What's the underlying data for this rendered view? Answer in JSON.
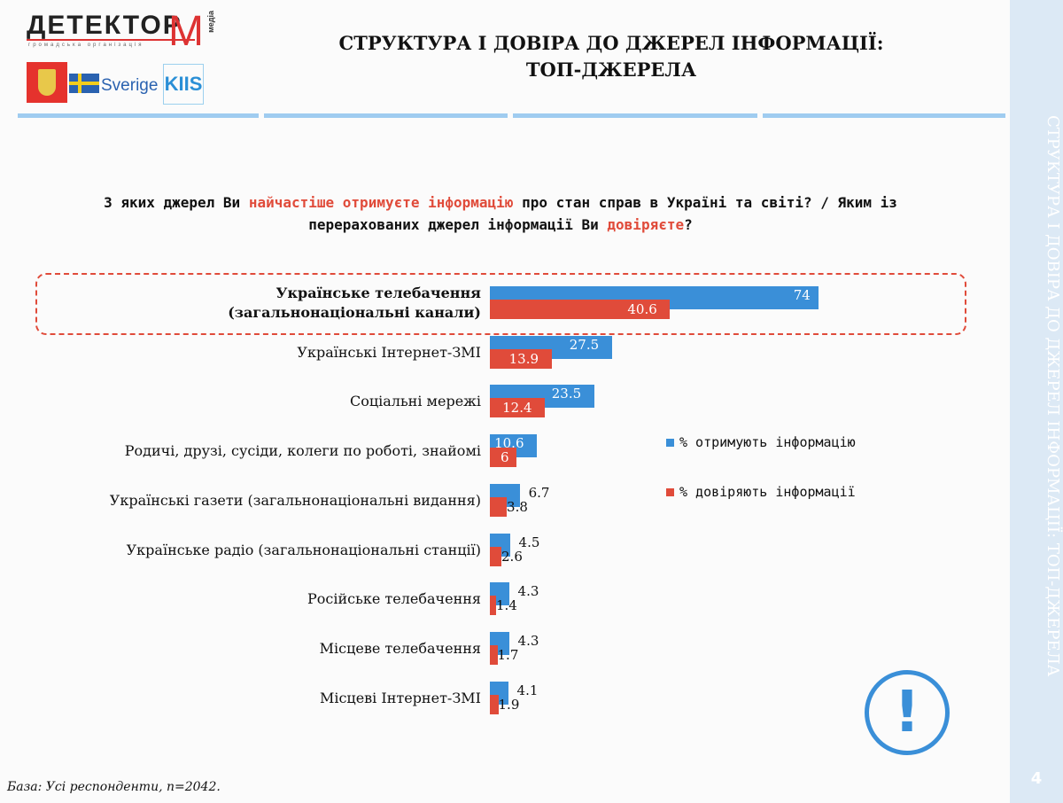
{
  "logo": {
    "name": "ДЕТЕКТОР",
    "m": "М",
    "media": "медіа",
    "sub": "громадська організація",
    "sverige": "Sverige",
    "kiis": "KIIS"
  },
  "title": {
    "line1": "СТРУКТУРА І ДОВІРА ДО ДЖЕРЕЛ ІНФОРМАЦІЇ:",
    "line2": "ТОП-ДЖЕРЕЛА"
  },
  "sidebar": {
    "text": "СТРУКТУРА І ДОВІРА ДО ДЖЕРЕЛ ІНФОРМАЦІЇ: ТОП-ДЖЕРЕЛА",
    "page": "4"
  },
  "question": {
    "p1": "З яких джерел Ви ",
    "h1": "найчастіше отримуєте інформацію",
    "p2": " про стан справ в Україні та світі? / Яким із перерахованих джерел інформації Ви ",
    "h2": "довіряєте",
    "p3": "?"
  },
  "footer": "База: Усі респонденти, n=2042.",
  "colors": {
    "blue": "#3a8fd8",
    "red": "#e04b3a"
  },
  "chart_data": {
    "type": "bar",
    "orientation": "horizontal",
    "categories": [
      "Українське телебачення (загальнонаціональні канали)",
      "Українські Інтернет-ЗМІ",
      "Соціальні мережі",
      "Родичі, друзі, сусіди, колеги по роботі, знайомі",
      "Українські газети (загальнонаціональні видання)",
      "Українське радіо (загальнонаціональні станції)",
      "Російське телебачення",
      "Місцеве телебачення",
      "Місцеві Інтернет-ЗМІ"
    ],
    "series": [
      {
        "name": "% отримують інформацію",
        "color": "#3a8fd8",
        "values": [
          74,
          27.5,
          23.5,
          10.6,
          6.7,
          4.5,
          4.3,
          4.3,
          4.1
        ]
      },
      {
        "name": "% довіряють інформації",
        "color": "#e04b3a",
        "values": [
          40.6,
          13.9,
          12.4,
          6,
          3.8,
          2.6,
          1.4,
          1.7,
          1.9
        ]
      }
    ],
    "highlighted_category": "Українське телебачення (загальнонаціональні канали)",
    "legend": "right",
    "grid": false
  }
}
